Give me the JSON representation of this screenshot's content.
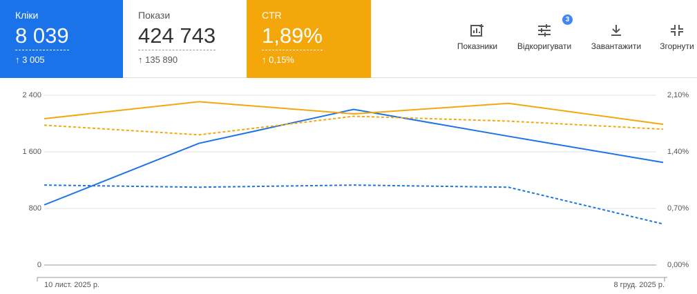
{
  "cards": [
    {
      "label": "Кліки",
      "value": "8 039",
      "change": "3 005"
    },
    {
      "label": "Покази",
      "value": "424 743",
      "change": "135 890"
    },
    {
      "label": "CTR",
      "value": "1,89%",
      "change": "0,15%"
    }
  ],
  "toolbar": {
    "items": [
      "Показники",
      "Відкоригувати",
      "Завантажити",
      "Згорнути"
    ],
    "badge": "3"
  },
  "chart_data": {
    "type": "line",
    "categories": [
      "10 лист. 2025 р.",
      null,
      null,
      null,
      "8 груд. 2025 р."
    ],
    "ylim": [
      0,
      2400
    ],
    "yticks": [
      0,
      {
        "value": 800,
        "label": "800"
      },
      {
        "value": 1600,
        "label": "1 600"
      },
      {
        "value": 2400,
        "label": "2 400"
      }
    ],
    "y2lim": [
      0,
      2.1
    ],
    "y2ticks": [
      {
        "value": 0,
        "label": "0,00%"
      },
      {
        "value": 0.7,
        "label": "0,70%"
      },
      {
        "value": 1.4,
        "label": "1,40%"
      },
      {
        "value": 2.1,
        "label": "2,10%"
      }
    ],
    "grid": true,
    "series": [
      {
        "color": "#1a73e8",
        "line_style": "solid",
        "values": [
          850,
          1720,
          2200,
          1820,
          1450
        ]
      },
      {
        "color": "#1a73e8",
        "line_style": "dashed",
        "values": [
          1130,
          1100,
          1130,
          1100,
          580
        ]
      },
      {
        "color": "#f4a70a",
        "line_style": "solid",
        "axis": "y2",
        "values": [
          1.81,
          2.02,
          1.87,
          2.0,
          1.74
        ]
      },
      {
        "color": "#f4a70a",
        "line_style": "dashed",
        "axis": "y2",
        "values": [
          1.73,
          1.61,
          1.84,
          1.78,
          1.68
        ]
      }
    ]
  }
}
